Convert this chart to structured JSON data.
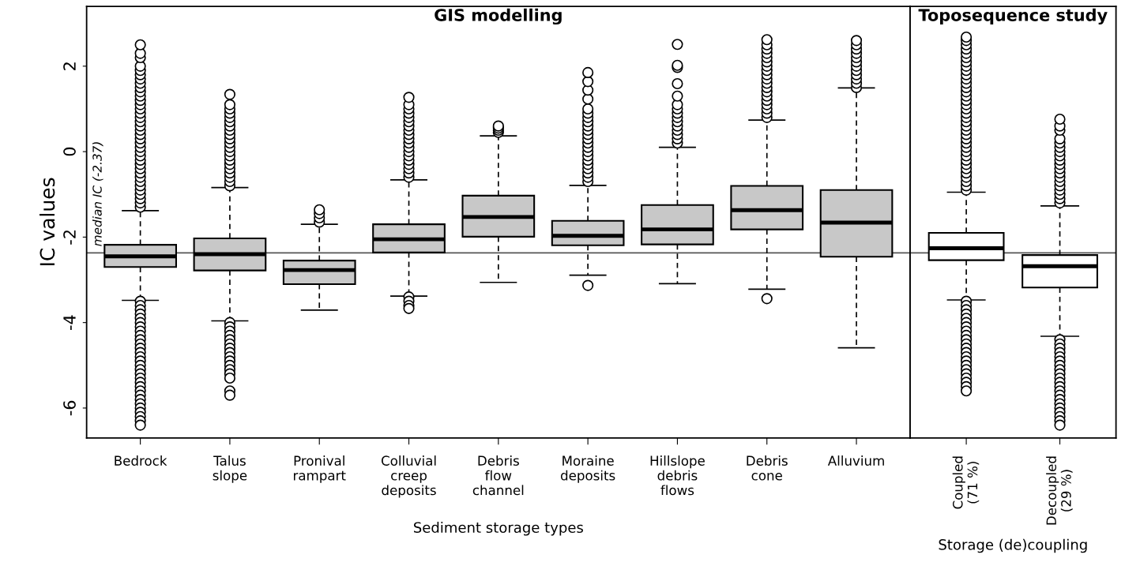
{
  "chart_data": [
    {
      "type": "box",
      "title": "GIS modelling",
      "xlabel": "Sediment storage types",
      "ylabel": "IC values",
      "categories": [
        "Bedrock",
        "Talus\nslope",
        "Pronival\nrampart",
        "Colluvial\ncreep\ndeposits",
        "Debris\nflow\nchannel",
        "Moraine\ndeposits",
        "Hillslope\ndebris\nflows",
        "Debris\ncone",
        "Alluvium"
      ],
      "colors": [
        "#c8c8c8",
        "#c8c8c8",
        "#c8c8c8",
        "#c8c8c8",
        "#c8c8c8",
        "#c8c8c8",
        "#c8c8c8",
        "#c8c8c8",
        "#c8c8c8"
      ],
      "boxes": [
        {
          "low": -3.48,
          "q1": -2.7,
          "median": -2.45,
          "q3": -2.18,
          "high": -1.38,
          "outliers": [
            -1.3,
            -1.2,
            -1.1,
            -1.0,
            -0.9,
            -0.8,
            -0.7,
            -0.6,
            -0.5,
            -0.4,
            -0.3,
            -0.2,
            -0.1,
            0.0,
            0.1,
            0.2,
            0.3,
            0.4,
            0.5,
            0.6,
            0.7,
            0.8,
            0.9,
            1.0,
            1.1,
            1.2,
            1.3,
            1.4,
            1.5,
            1.6,
            1.7,
            1.8,
            1.9,
            2.0,
            2.2,
            2.3,
            2.5,
            -3.5,
            -3.6,
            -3.7,
            -3.8,
            -3.9,
            -4.0,
            -4.1,
            -4.2,
            -4.3,
            -4.4,
            -4.5,
            -4.6,
            -4.7,
            -4.8,
            -4.9,
            -5.0,
            -5.1,
            -5.2,
            -5.3,
            -5.4,
            -5.5,
            -5.6,
            -5.7,
            -5.8,
            -5.9,
            -6.0,
            -6.1,
            -6.2,
            -6.3,
            -6.4
          ]
        },
        {
          "low": -3.96,
          "q1": -2.78,
          "median": -2.4,
          "q3": -2.03,
          "high": -0.84,
          "outliers": [
            -0.8,
            -0.7,
            -0.6,
            -0.5,
            -0.4,
            -0.3,
            -0.2,
            -0.1,
            0.0,
            0.1,
            0.2,
            0.3,
            0.4,
            0.5,
            0.6,
            0.7,
            0.8,
            0.9,
            1.0,
            1.1,
            1.34,
            -4.0,
            -4.1,
            -4.2,
            -4.3,
            -4.4,
            -4.5,
            -4.6,
            -4.7,
            -4.8,
            -4.9,
            -5.0,
            -5.1,
            -5.2,
            -5.3,
            -5.6,
            -5.7
          ]
        },
        {
          "low": -3.71,
          "q1": -3.1,
          "median": -2.77,
          "q3": -2.55,
          "high": -1.7,
          "outliers": [
            -1.65,
            -1.55,
            -1.45,
            -1.36
          ]
        },
        {
          "low": -3.38,
          "q1": -2.36,
          "median": -2.05,
          "q3": -1.7,
          "high": -0.66,
          "outliers": [
            -0.6,
            -0.5,
            -0.4,
            -0.3,
            -0.2,
            -0.1,
            0.0,
            0.1,
            0.2,
            0.3,
            0.4,
            0.5,
            0.6,
            0.7,
            0.8,
            0.9,
            1.0,
            1.1,
            1.27,
            -3.4,
            -3.5,
            -3.6,
            -3.67
          ]
        },
        {
          "low": -3.06,
          "q1": -1.99,
          "median": -1.53,
          "q3": -1.03,
          "high": 0.37,
          "outliers": [
            0.45,
            0.5,
            0.55,
            0.6
          ]
        },
        {
          "low": -2.89,
          "q1": -2.19,
          "median": -1.97,
          "q3": -1.62,
          "high": -0.79,
          "outliers": [
            -0.7,
            -0.6,
            -0.5,
            -0.4,
            -0.3,
            -0.2,
            -0.1,
            0.0,
            0.1,
            0.2,
            0.3,
            0.4,
            0.5,
            0.6,
            0.7,
            0.8,
            0.9,
            1.0,
            1.23,
            1.44,
            1.64,
            1.85,
            -3.13
          ]
        },
        {
          "low": -3.09,
          "q1": -2.17,
          "median": -1.82,
          "q3": -1.25,
          "high": 0.1,
          "outliers": [
            0.2,
            0.3,
            0.4,
            0.5,
            0.6,
            0.7,
            0.8,
            0.9,
            1.0,
            1.1,
            1.3,
            1.59,
            1.97,
            2.02,
            2.51
          ]
        },
        {
          "low": -3.22,
          "q1": -1.82,
          "median": -1.37,
          "q3": -0.8,
          "high": 0.74,
          "outliers": [
            0.8,
            0.9,
            1.0,
            1.1,
            1.2,
            1.3,
            1.4,
            1.5,
            1.6,
            1.7,
            1.8,
            1.9,
            2.0,
            2.1,
            2.2,
            2.3,
            2.4,
            2.5,
            2.62,
            -3.44
          ]
        },
        {
          "low": -4.59,
          "q1": -2.46,
          "median": -1.66,
          "q3": -0.9,
          "high": 1.49,
          "outliers": [
            1.5,
            1.6,
            1.7,
            1.8,
            1.9,
            2.0,
            2.1,
            2.2,
            2.3,
            2.4,
            2.5,
            2.6
          ]
        }
      ],
      "ylim": [
        -6.7,
        3.4
      ],
      "yticks": [
        -6,
        -4,
        -2,
        0,
        2
      ],
      "ref_lines": [
        {
          "axis": "y",
          "value": -2.37,
          "label": "median IC (-2.37)",
          "color": "#555555"
        }
      ]
    },
    {
      "type": "box",
      "title": "Toposequence study",
      "xlabel": "Storage (de)coupling",
      "categories": [
        "Coupled\n(71 %)",
        "Decoupled\n(29 %)"
      ],
      "colors": [
        "#ffffff",
        "#ffffff"
      ],
      "boxes": [
        {
          "low": -3.47,
          "q1": -2.54,
          "median": -2.26,
          "q3": -1.9,
          "high": -0.95,
          "outliers": [
            -0.9,
            -0.8,
            -0.7,
            -0.6,
            -0.5,
            -0.4,
            -0.3,
            -0.2,
            -0.1,
            0.0,
            0.1,
            0.2,
            0.3,
            0.4,
            0.5,
            0.6,
            0.7,
            0.8,
            0.9,
            1.0,
            1.1,
            1.2,
            1.3,
            1.4,
            1.5,
            1.6,
            1.7,
            1.8,
            1.9,
            2.0,
            2.1,
            2.2,
            2.3,
            2.4,
            2.5,
            2.6,
            2.68,
            -3.5,
            -3.6,
            -3.7,
            -3.8,
            -3.9,
            -4.0,
            -4.1,
            -4.2,
            -4.3,
            -4.4,
            -4.5,
            -4.6,
            -4.7,
            -4.8,
            -4.9,
            -5.0,
            -5.1,
            -5.2,
            -5.3,
            -5.4,
            -5.5,
            -5.6
          ]
        },
        {
          "low": -4.32,
          "q1": -3.18,
          "median": -2.68,
          "q3": -2.42,
          "high": -1.27,
          "outliers": [
            -1.2,
            -1.1,
            -1.0,
            -0.9,
            -0.8,
            -0.7,
            -0.6,
            -0.5,
            -0.4,
            -0.3,
            -0.2,
            -0.1,
            0.0,
            0.1,
            0.2,
            0.3,
            0.5,
            0.6,
            0.76,
            -4.4,
            -4.5,
            -4.6,
            -4.7,
            -4.8,
            -4.9,
            -5.0,
            -5.1,
            -5.2,
            -5.3,
            -5.4,
            -5.5,
            -5.6,
            -5.7,
            -5.8,
            -5.9,
            -6.0,
            -6.1,
            -6.2,
            -6.3,
            -6.4
          ]
        }
      ],
      "ylim": [
        -6.7,
        3.4
      ],
      "tick_labels": "x",
      "ref_lines": [
        {
          "axis": "y",
          "value": -2.37,
          "color": "#555555"
        }
      ]
    }
  ]
}
